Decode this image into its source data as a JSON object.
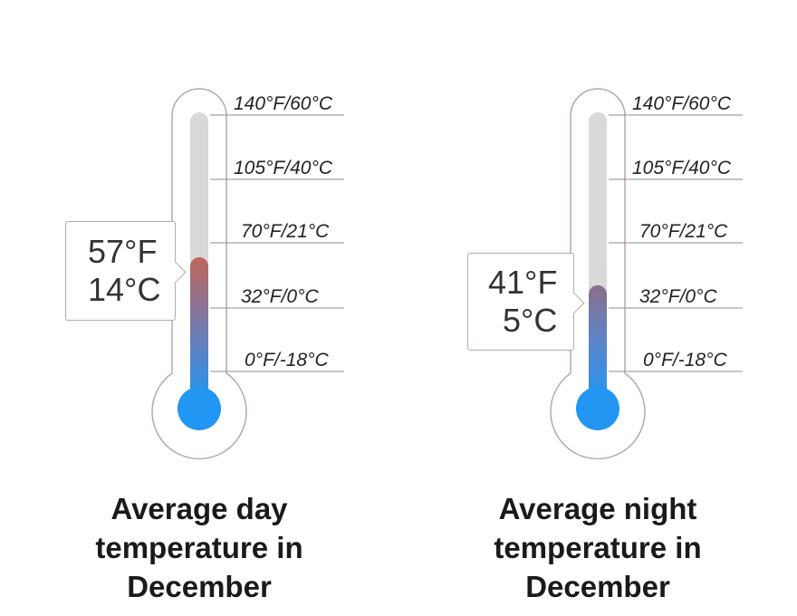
{
  "colors": {
    "outline": "#b9a8a9",
    "tube_empty": "#d9d9d9",
    "scale_line": "#8c8c8c",
    "mercury_blue": "#2196f3",
    "day_top": "#c0655a",
    "night_top": "#8a6f88"
  },
  "scale_labels": [
    "140°F/60°C",
    "105°F/40°C",
    "70°F/21°C",
    "32°F/0°C",
    "0°F/-18°C"
  ],
  "thermometers": [
    {
      "reading_f": "57°F",
      "reading_c": "14°C",
      "level_c": 14,
      "caption": "Average day temperature in December"
    },
    {
      "reading_f": "41°F",
      "reading_c": "5°C",
      "level_c": 5,
      "caption": "Average night temperature in December"
    }
  ]
}
